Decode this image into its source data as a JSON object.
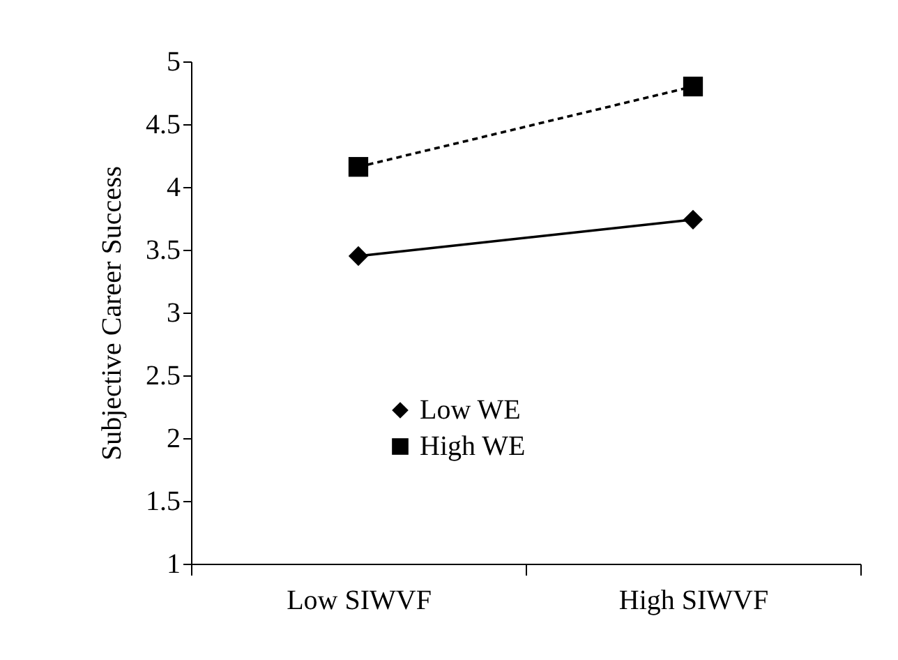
{
  "chart_data": {
    "type": "line",
    "ylabel": "Subjective  Career Success",
    "categories": [
      "Low SIWVF",
      "High SIWVF"
    ],
    "series": [
      {
        "name": "Low WE",
        "color": "#000000",
        "values": [
          3.45,
          3.74
        ],
        "marker": "diamond",
        "line_style": "solid"
      },
      {
        "name": "High WE",
        "color": "#000000",
        "values": [
          4.16,
          4.8
        ],
        "marker": "square",
        "line_style": "dashed"
      }
    ],
    "ylim": [
      1,
      5
    ],
    "yticks": [
      1,
      1.5,
      2,
      2.5,
      3,
      3.5,
      4,
      4.5,
      5
    ],
    "grid": false,
    "legend": "bottom"
  }
}
